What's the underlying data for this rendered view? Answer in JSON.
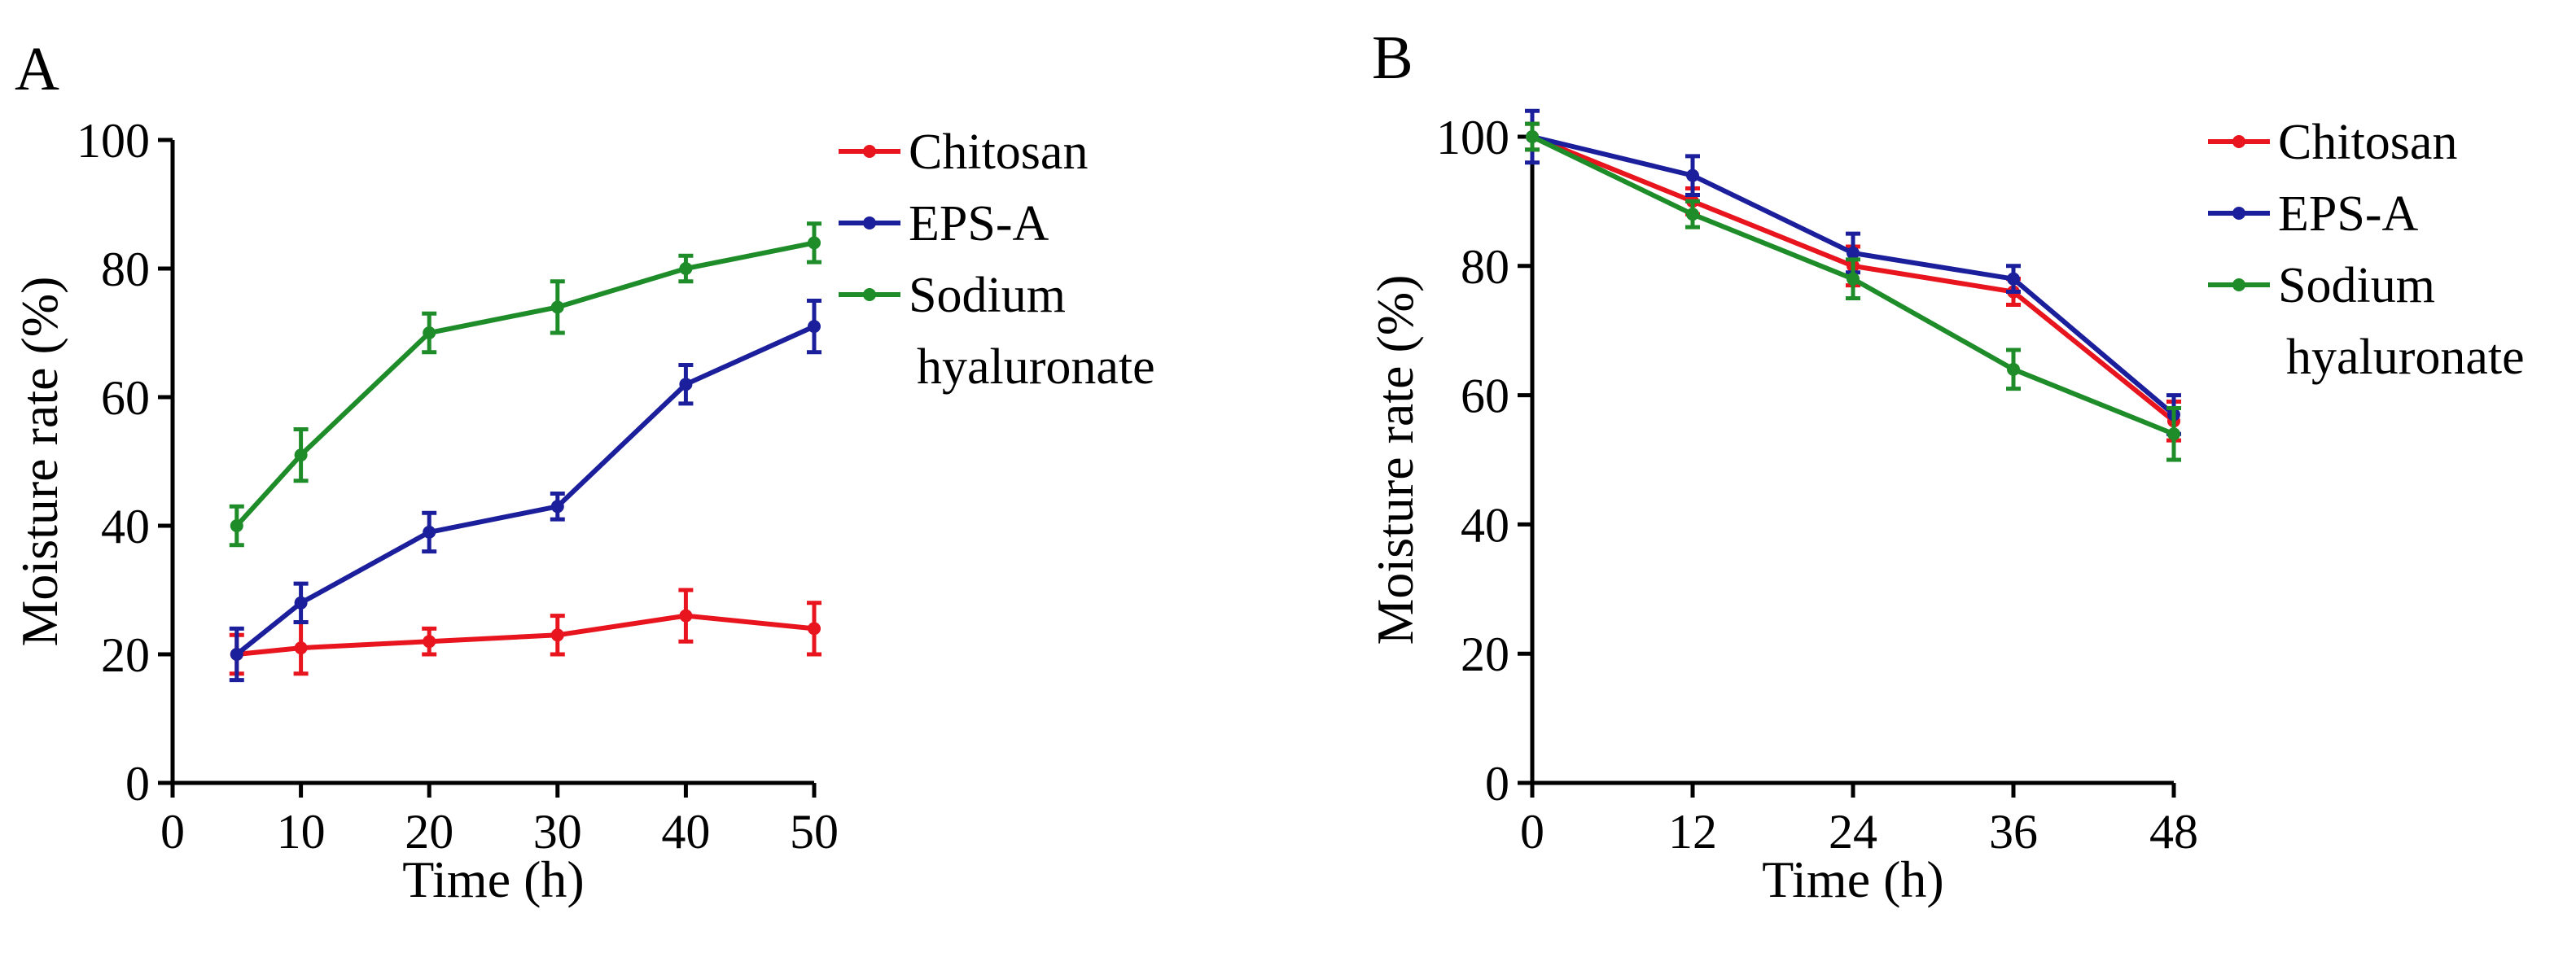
{
  "chart_data": [
    {
      "panel_label": "A",
      "type": "line",
      "xlabel": "Time (h)",
      "ylabel": "Moisture rate (%)",
      "xlim": [
        0,
        50
      ],
      "ylim": [
        0,
        100
      ],
      "x_ticks": [
        0,
        10,
        20,
        30,
        40,
        50
      ],
      "y_ticks": [
        0,
        20,
        40,
        60,
        80,
        100
      ],
      "x": [
        5,
        10,
        20,
        30,
        40,
        50
      ],
      "series": [
        {
          "name": "Chitosan",
          "color": "#e8141e",
          "values": [
            20,
            21,
            22,
            23,
            26,
            24
          ],
          "errors": [
            3,
            4,
            2,
            3,
            4,
            4
          ]
        },
        {
          "name": "EPS-A",
          "color": "#1c1f9c",
          "values": [
            20,
            28,
            39,
            43,
            62,
            71
          ],
          "errors": [
            4,
            3,
            3,
            2,
            3,
            4
          ]
        },
        {
          "name": "Sodium hyaluronate",
          "legend_lines": [
            "Sodium",
            "hyaluronate"
          ],
          "color": "#1e8c28",
          "values": [
            40,
            51,
            70,
            74,
            80,
            84
          ],
          "errors": [
            3,
            4,
            3,
            4,
            2,
            3
          ]
        }
      ],
      "legend": "top-right, outside plot"
    },
    {
      "panel_label": "B",
      "type": "line",
      "xlabel": "Time (h)",
      "ylabel": "Moisture rate (%)",
      "xlim": [
        0,
        48
      ],
      "ylim": [
        0,
        100
      ],
      "x_ticks": [
        0,
        12,
        24,
        36,
        48
      ],
      "y_ticks": [
        0,
        20,
        40,
        60,
        80,
        100
      ],
      "x": [
        0,
        12,
        24,
        36,
        48
      ],
      "series": [
        {
          "name": "Chitosan",
          "color": "#e8141e",
          "values": [
            100,
            90,
            80,
            76,
            56
          ],
          "errors": [
            2,
            2,
            3,
            2,
            3
          ]
        },
        {
          "name": "EPS-A",
          "color": "#1c1f9c",
          "values": [
            100,
            94,
            82,
            78,
            57
          ],
          "errors": [
            4,
            3,
            3,
            2,
            3
          ]
        },
        {
          "name": "Sodium hyaluronate",
          "legend_lines": [
            "Sodium",
            "hyaluronate"
          ],
          "color": "#1e8c28",
          "values": [
            100,
            88,
            78,
            64,
            54
          ],
          "errors": [
            2,
            2,
            3,
            3,
            4
          ]
        }
      ],
      "legend": "top-right, outside plot"
    }
  ]
}
